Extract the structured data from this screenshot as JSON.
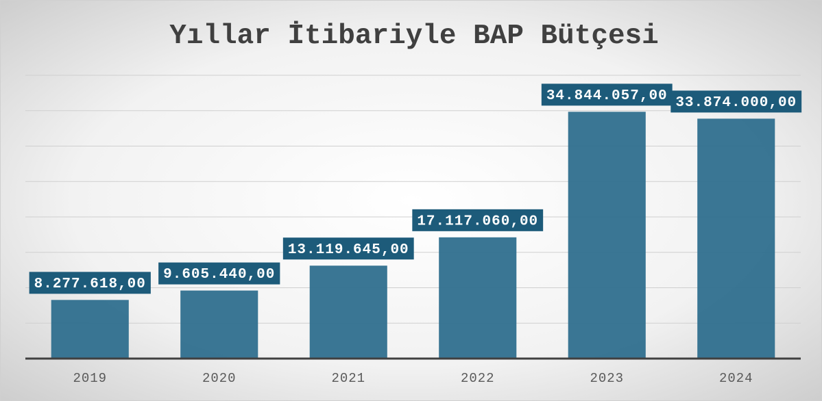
{
  "chart_data": {
    "type": "bar",
    "title": "Yıllar İtibariyle BAP Bütçesi",
    "categories": [
      "2019",
      "2020",
      "2021",
      "2022",
      "2023",
      "2024"
    ],
    "values": [
      8277618,
      9605440,
      13119645,
      17117060,
      34844057,
      33874000
    ],
    "value_labels": [
      "8.277.618,00",
      "9.605.440,00",
      "13.119.645,00",
      "17.117.060,00",
      "34.844.057,00",
      "33.874.000,00"
    ],
    "color": "#2f6f8e",
    "label_color": "#1d5b7a",
    "ylim": [
      0,
      40000000
    ],
    "yticks": [
      0,
      5000000,
      10000000,
      15000000,
      20000000,
      25000000,
      30000000,
      35000000,
      40000000
    ],
    "grid": true
  }
}
